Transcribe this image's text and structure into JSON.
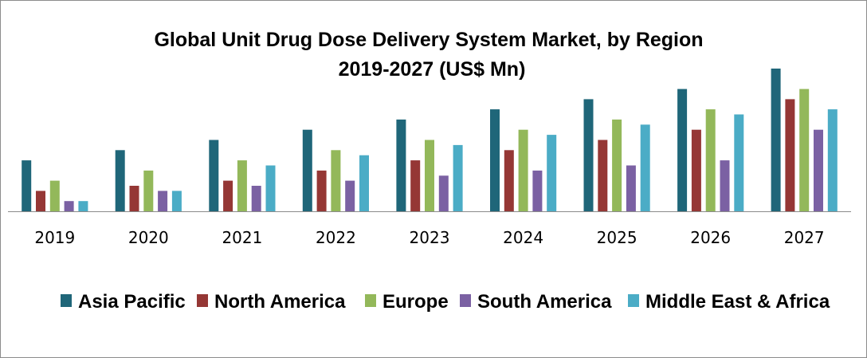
{
  "chart_data": {
    "type": "bar",
    "title": "Global Unit Drug Dose Delivery System Market, by Region",
    "subtitle": "2019-2027 (US$ Mn)",
    "xlabel": "",
    "ylabel": "",
    "ylim": [
      0,
      14
    ],
    "grid": false,
    "legend_position": "bottom",
    "categories": [
      "2019",
      "2020",
      "2021",
      "2022",
      "2023",
      "2024",
      "2025",
      "2026",
      "2027"
    ],
    "series": [
      {
        "name": "Asia Pacific",
        "color": "#1F6679",
        "values": [
          5,
          6,
          7,
          8,
          9,
          10,
          11,
          12,
          14
        ]
      },
      {
        "name": "North America",
        "color": "#953735",
        "values": [
          2,
          2.5,
          3,
          4,
          5,
          6,
          7,
          8,
          11
        ]
      },
      {
        "name": "Europe",
        "color": "#93B85A",
        "values": [
          3,
          4,
          5,
          6,
          7,
          8,
          9,
          10,
          12
        ]
      },
      {
        "name": "South America",
        "color": "#7B61A3",
        "values": [
          1,
          2,
          2.5,
          3,
          3.5,
          4,
          4.5,
          5,
          8
        ]
      },
      {
        "name": "Middle East & Africa",
        "color": "#4BACC6",
        "values": [
          1,
          2,
          4.5,
          5.5,
          6.5,
          7.5,
          8.5,
          9.5,
          10
        ]
      }
    ]
  }
}
